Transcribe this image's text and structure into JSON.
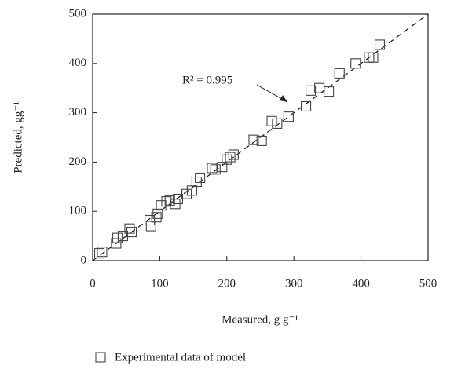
{
  "chart_data": {
    "type": "scatter",
    "x_label": "Measured, g g⁻¹",
    "y_label": "Predicted, gg⁻¹",
    "annotation": "R² = 0.995",
    "series": [
      {
        "name": "Experimental data of model",
        "color": "#444444",
        "x": [
          10,
          14,
          35,
          37,
          45,
          55,
          58,
          85,
          87,
          95,
          97,
          102,
          110,
          115,
          123,
          127,
          140,
          148,
          155,
          160,
          178,
          183,
          193,
          200,
          205,
          210,
          240,
          252,
          267,
          275,
          292,
          318,
          325,
          338,
          352,
          368,
          392,
          412,
          418,
          428
        ],
        "values": [
          15,
          18,
          35,
          46,
          50,
          65,
          58,
          82,
          70,
          88,
          95,
          112,
          120,
          122,
          115,
          125,
          135,
          142,
          160,
          168,
          188,
          185,
          190,
          205,
          210,
          215,
          245,
          243,
          283,
          278,
          292,
          313,
          345,
          350,
          343,
          380,
          400,
          412,
          412,
          438
        ]
      }
    ],
    "xlim": [
      0,
      500
    ],
    "ylim": [
      0,
      500
    ],
    "xticks": [
      0,
      100,
      200,
      300,
      400,
      500
    ],
    "yticks": [
      0,
      100,
      200,
      300,
      400,
      500
    ],
    "grid": false
  }
}
